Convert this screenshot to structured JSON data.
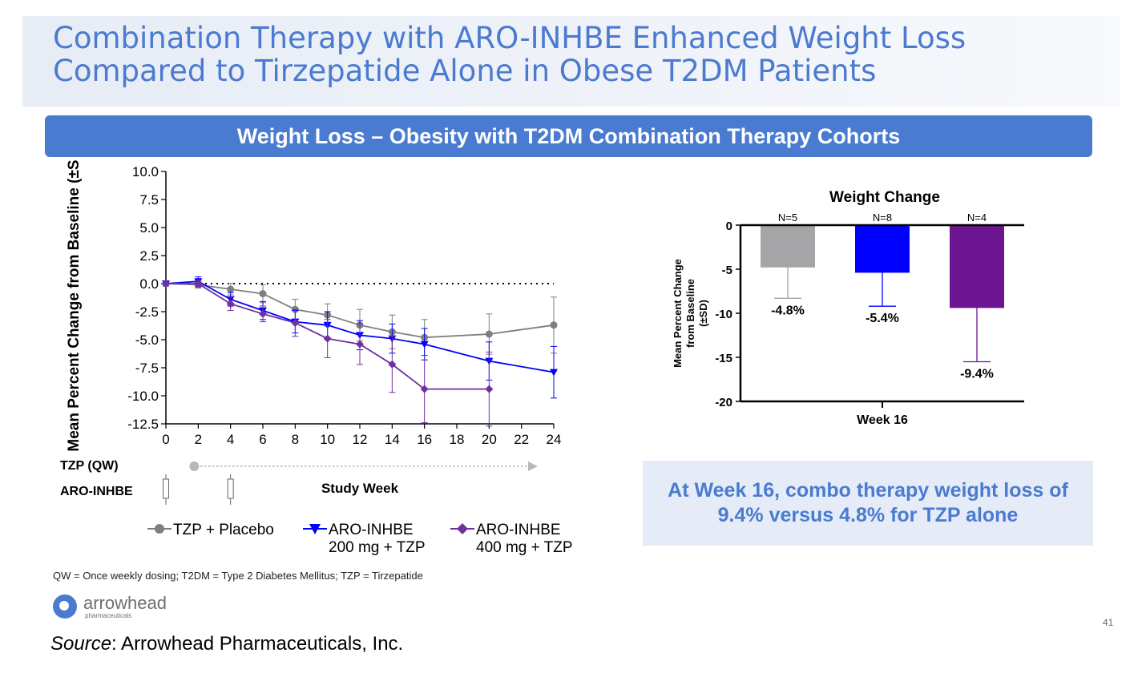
{
  "slide": {
    "title": "Combination Therapy with ARO-INHBE Enhanced Weight Loss Compared to Tirzepatide Alone in Obese T2DM Patients",
    "banner": "Weight Loss – Obesity with T2DM Combination Therapy Cohorts",
    "callout": "At Week 16, combo therapy weight loss of 9.4% versus 4.8% for TZP alone",
    "footnote": "QW = Once weekly dosing; T2DM = Type 2 Diabetes Mellitus; TZP = Tirzepatide",
    "page_number": "41",
    "source_label": "Source",
    "source_text": ": Arrowhead Pharmaceuticals, Inc.",
    "logo_name": "arrowhead",
    "logo_sub": "pharmaceuticals"
  },
  "colors": {
    "accent": "#4a7bd0",
    "placebo": "#7f7f7f",
    "aro200": "#0000ff",
    "aro400": "#7030a0"
  },
  "chart_data": [
    {
      "type": "line",
      "title": "",
      "xlabel": "Study Week",
      "ylabel": "Mean Percent Change from Baseline (±SD)",
      "xlim": [
        0,
        24
      ],
      "ylim": [
        -12.5,
        10.0
      ],
      "xticks": [
        "0",
        "2",
        "4",
        "6",
        "8",
        "10",
        "12",
        "14",
        "16",
        "18",
        "20",
        "22",
        "24"
      ],
      "yticks": [
        "10.0",
        "7.5",
        "5.0",
        "2.5",
        "0.0",
        "-2.5",
        "-5.0",
        "-7.5",
        "-10.0",
        "-12.5"
      ],
      "reference_line": 0,
      "series": [
        {
          "name": "TZP + Placebo",
          "marker": "circle",
          "color": "#7f7f7f",
          "x": [
            0,
            2,
            4,
            6,
            8,
            10,
            12,
            14,
            16,
            20,
            24
          ],
          "y": [
            0,
            -0.1,
            -0.5,
            -0.9,
            -2.3,
            -2.8,
            -3.7,
            -4.3,
            -4.8,
            -4.5,
            -3.7
          ],
          "sd": [
            0.2,
            0.3,
            0.5,
            0.8,
            0.9,
            1.0,
            1.4,
            1.5,
            1.6,
            1.8,
            2.5
          ]
        },
        {
          "name": "ARO-INHBE 200 mg + TZP",
          "marker": "triangle-down",
          "color": "#0000ff",
          "x": [
            0,
            2,
            4,
            6,
            8,
            10,
            12,
            14,
            16,
            20,
            24
          ],
          "y": [
            0,
            0.2,
            -1.4,
            -2.4,
            -3.4,
            -3.7,
            -4.6,
            -4.9,
            -5.4,
            -6.9,
            -7.9
          ],
          "sd": [
            0.2,
            0.4,
            0.6,
            0.8,
            1.0,
            1.2,
            1.3,
            1.3,
            1.4,
            1.7,
            2.3
          ]
        },
        {
          "name": "ARO-INHBE 400 mg + TZP",
          "marker": "diamond",
          "color": "#7030a0",
          "x": [
            0,
            2,
            4,
            6,
            8,
            10,
            12,
            14,
            16,
            20
          ],
          "y": [
            0,
            0,
            -1.8,
            -2.7,
            -3.5,
            -4.9,
            -5.4,
            -7.2,
            -9.4,
            -9.4
          ],
          "sd": [
            0.2,
            0.3,
            0.6,
            0.7,
            1.2,
            1.7,
            1.8,
            2.5,
            3.0,
            3.3
          ]
        }
      ],
      "legend": [
        "TZP + Placebo",
        "ARO-INHBE 200 mg + TZP",
        "ARO-INHBE 400 mg + TZP"
      ],
      "legend_lines": [
        [
          "TZP + Placebo"
        ],
        [
          "ARO-INHBE",
          "200 mg + TZP"
        ],
        [
          "ARO-INHBE",
          "400 mg + TZP"
        ]
      ],
      "dosing": {
        "tzp_label": "TZP (QW)",
        "tzp_start_week": 2,
        "aro_label": "ARO-INHBE",
        "aro_dose_weeks": [
          0,
          4
        ]
      }
    },
    {
      "type": "bar",
      "title": "Weight Change",
      "xlabel": "Week 16",
      "ylabel": "Mean Percent Change from Baseline (±SD)",
      "ylabel_lines": [
        "Mean Percent Change",
        "from Baseline",
        "(±SD)"
      ],
      "ylim": [
        -20,
        0
      ],
      "yticks": [
        "0",
        "-5",
        "-10",
        "-15",
        "-20"
      ],
      "categories": [
        "TZP + Placebo",
        "ARO-INHBE 200 mg + TZP",
        "ARO-INHBE 400 mg + TZP"
      ],
      "values": [
        -4.8,
        -5.4,
        -9.4
      ],
      "sd": [
        3.5,
        3.8,
        6.1
      ],
      "n_labels": [
        "N=5",
        "N=8",
        "N=4"
      ],
      "value_labels": [
        "-4.8%",
        "-5.4%",
        "-9.4%"
      ],
      "colors": [
        "#a5a5a8",
        "#0000ff",
        "#6b1590"
      ]
    }
  ]
}
